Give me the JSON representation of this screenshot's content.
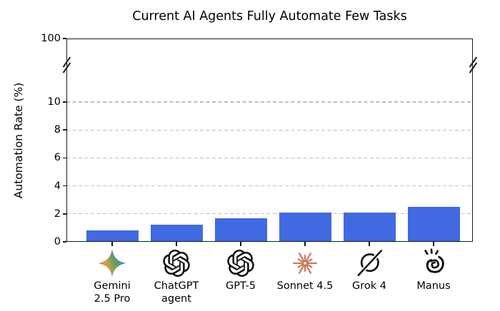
{
  "chart_data": {
    "type": "bar",
    "title": "Current AI Agents Fully Automate Few Tasks",
    "ylabel": "Automation Rate (%)",
    "xlabel": "",
    "grid": "horizontal-dashed",
    "legend": "none",
    "broken_axis": true,
    "ylim_linear_section": [
      0,
      10
    ],
    "ytick_labels_linear": [
      0,
      2,
      4,
      6,
      8,
      10
    ],
    "ytick_top_label": "100",
    "bar_color": "#4169E1",
    "categories": [
      "Gemini 2.5 Pro",
      "ChatGPT agent",
      "GPT-5",
      "Sonnet 4.5",
      "Grok 4",
      "Manus"
    ],
    "category_label_lines": [
      [
        "Gemini",
        "2.5 Pro"
      ],
      [
        "ChatGPT",
        "agent"
      ],
      [
        "GPT-5"
      ],
      [
        "Sonnet 4.5"
      ],
      [
        "Grok 4"
      ],
      [
        "Manus"
      ]
    ],
    "category_icons": [
      "gemini-icon",
      "openai-icon",
      "openai-icon",
      "anthropic-starburst-icon",
      "grok-icon",
      "manus-hand-icon"
    ],
    "values": [
      0.83,
      1.25,
      1.67,
      2.08,
      2.08,
      2.5
    ]
  },
  "colors": {
    "bar": "#4169E1",
    "grid": "#bfbfbf",
    "axis": "#1a1a1a",
    "anthropic": "#CC785C",
    "text": "#000000"
  }
}
